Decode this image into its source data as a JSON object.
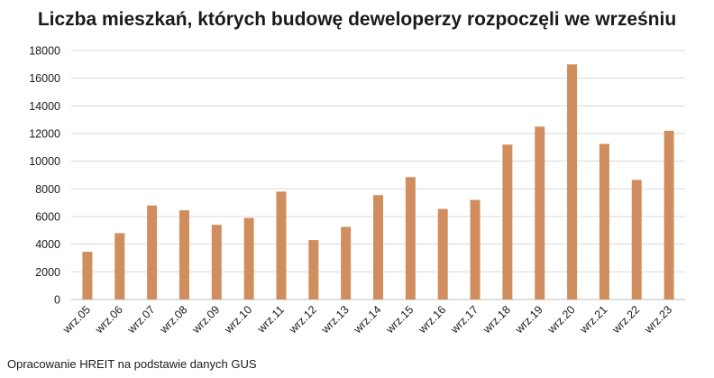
{
  "chart_data": {
    "type": "bar",
    "title": "Liczba mieszkań, których budowę deweloperzy rozpoczęli we wrześniu",
    "categories": [
      "wrz.05",
      "wrz.06",
      "wrz.07",
      "wrz.08",
      "wrz.09",
      "wrz.10",
      "wrz.11",
      "wrz.12",
      "wrz.13",
      "wrz.14",
      "wrz.15",
      "wrz.16",
      "wrz.17",
      "wrz.18",
      "wrz.19",
      "wrz.20",
      "wrz.21",
      "wrz.22",
      "wrz.23"
    ],
    "values": [
      3450,
      4800,
      6800,
      6450,
      5400,
      5900,
      7800,
      4300,
      5250,
      7550,
      8850,
      6550,
      7200,
      11200,
      12500,
      17000,
      11250,
      8650,
      12200
    ],
    "ylim": [
      0,
      18000
    ],
    "yticks": [
      0,
      2000,
      4000,
      6000,
      8000,
      10000,
      12000,
      14000,
      16000,
      18000
    ],
    "grid": true,
    "bar_color": "#d08e5e",
    "source": "Opracowanie HREIT na podstawie danych GUS"
  }
}
